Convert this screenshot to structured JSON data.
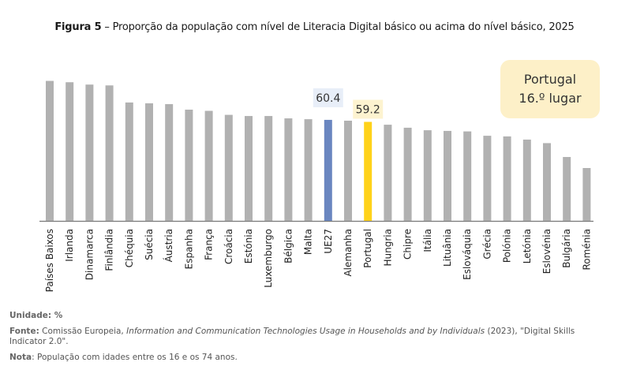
{
  "title": {
    "prefix": "Figura 5",
    "text": " – Proporção da população com nível de Literacia Digital básico ou acima do nível básico, 2025"
  },
  "callout": {
    "line1": "Portugal",
    "line2": "16.º lugar"
  },
  "footer": {
    "unit_label": "Unidade:",
    "unit_value": " %",
    "source_label": "Fonte:",
    "source_pre": " Comissão Europeia, ",
    "source_italic": "Information and Communication Technologies Usage in Households and by Individuals",
    "source_post": " (2023), \"Digital Skills Indicator 2.0\".",
    "note_label": "Nota",
    "note_text": ": População com idades entre os 16 e os 74 anos."
  },
  "colors": {
    "default_bar": "#b1b1b1",
    "eu_bar": "#6a86c0",
    "portugal_bar": "#ffd21a",
    "eu_label_bg": "#e8eef8",
    "portugal_label_bg": "#fdf3d0",
    "axis": "#777777"
  },
  "chart_data": {
    "type": "bar",
    "title": "Proporção da população com nível de Literacia Digital básico ou acima do nível básico, 2025",
    "xlabel": "",
    "ylabel": "",
    "unit": "%",
    "ylim": [
      0,
      100
    ],
    "grid": false,
    "categories": [
      "Países Baixos",
      "Irlanda",
      "Dinamarca",
      "Finlândia",
      "Chéquia",
      "Suécia",
      "Áustria",
      "Espanha",
      "França",
      "Croácia",
      "Estónia",
      "Luxemburgo",
      "Bélgica",
      "Malta",
      "UE27",
      "Alemanha",
      "Portugal",
      "Hungria",
      "Chipre",
      "Itália",
      "Lituânia",
      "Eslováquia",
      "Grécia",
      "Polónia",
      "Letónia",
      "Eslovénia",
      "Bulgária",
      "Roménia"
    ],
    "values": [
      83.7,
      82.9,
      81.5,
      81.0,
      70.8,
      70.3,
      69.8,
      66.5,
      65.8,
      63.4,
      62.7,
      62.7,
      61.3,
      60.8,
      60.4,
      59.9,
      59.2,
      57.5,
      55.7,
      54.2,
      53.8,
      53.5,
      50.9,
      50.5,
      48.6,
      46.5,
      38.2,
      31.6
    ],
    "highlights": [
      {
        "category": "UE27",
        "label": "60.4",
        "role": "eu"
      },
      {
        "category": "Portugal",
        "label": "59.2",
        "role": "portugal"
      }
    ]
  }
}
